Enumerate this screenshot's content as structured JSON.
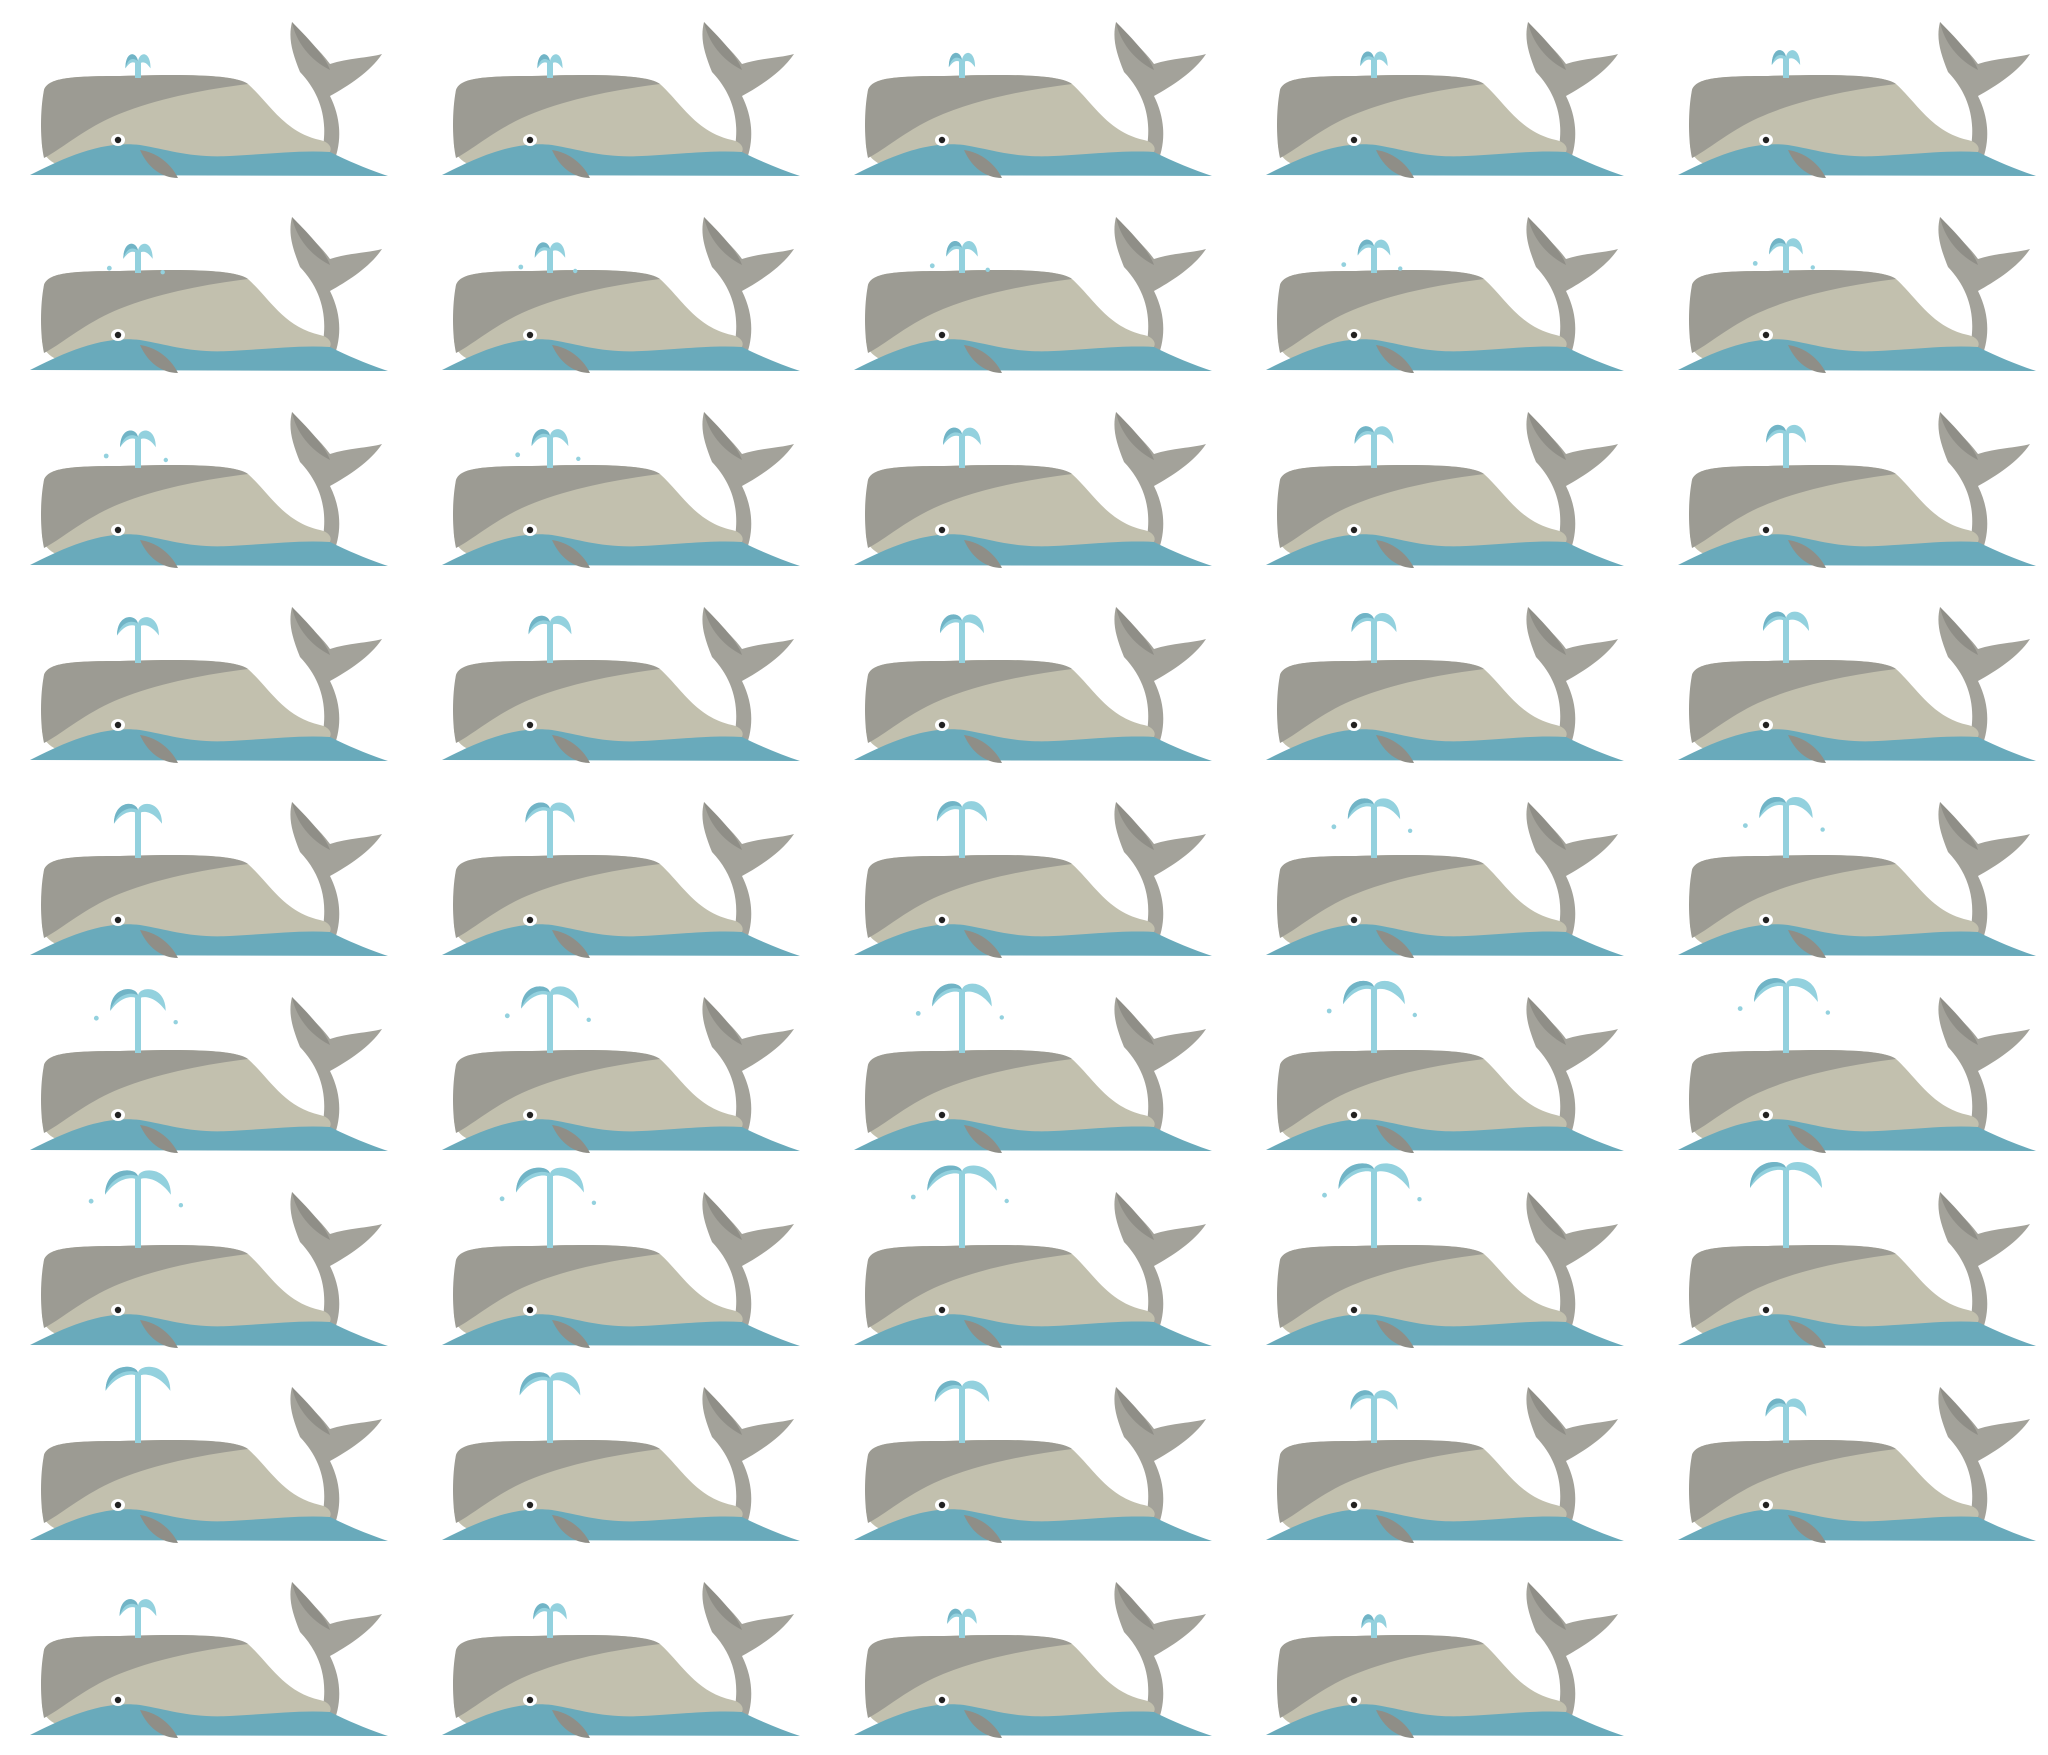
{
  "sprite_sheet": {
    "subject": "whale-spout-animation",
    "columns": 5,
    "rows": 9,
    "frame_count": 44,
    "colors": {
      "background": "#ffffff",
      "water": "#69aabb",
      "body_light": "#c2c0ae",
      "body_dark": "#9c9b93",
      "tail": "#a3a29a",
      "tail_dark": "#8f8e87",
      "spout": "#93d1de",
      "spout_dark": "#71b4c6",
      "eye": "#222222"
    },
    "frames": [
      {
        "spout_level": 0.1,
        "drops": false
      },
      {
        "spout_level": 0.1,
        "drops": false
      },
      {
        "spout_level": 0.12,
        "drops": false
      },
      {
        "spout_level": 0.14,
        "drops": false
      },
      {
        "spout_level": 0.16,
        "drops": false
      },
      {
        "spout_level": 0.18,
        "drops": true
      },
      {
        "spout_level": 0.2,
        "drops": true
      },
      {
        "spout_level": 0.22,
        "drops": true
      },
      {
        "spout_level": 0.24,
        "drops": true
      },
      {
        "spout_level": 0.26,
        "drops": true
      },
      {
        "spout_level": 0.3,
        "drops": true
      },
      {
        "spout_level": 0.32,
        "drops": true
      },
      {
        "spout_level": 0.34,
        "drops": false
      },
      {
        "spout_level": 0.36,
        "drops": false
      },
      {
        "spout_level": 0.38,
        "drops": false
      },
      {
        "spout_level": 0.42,
        "drops": false
      },
      {
        "spout_level": 0.44,
        "drops": false
      },
      {
        "spout_level": 0.46,
        "drops": false
      },
      {
        "spout_level": 0.48,
        "drops": false
      },
      {
        "spout_level": 0.5,
        "drops": false
      },
      {
        "spout_level": 0.54,
        "drops": false
      },
      {
        "spout_level": 0.56,
        "drops": false
      },
      {
        "spout_level": 0.58,
        "drops": false
      },
      {
        "spout_level": 0.62,
        "drops": true
      },
      {
        "spout_level": 0.64,
        "drops": true
      },
      {
        "spout_level": 0.68,
        "drops": true
      },
      {
        "spout_level": 0.72,
        "drops": true
      },
      {
        "spout_level": 0.76,
        "drops": true
      },
      {
        "spout_level": 0.8,
        "drops": true
      },
      {
        "spout_level": 0.84,
        "drops": true
      },
      {
        "spout_level": 0.88,
        "drops": true
      },
      {
        "spout_level": 0.92,
        "drops": true
      },
      {
        "spout_level": 0.95,
        "drops": true
      },
      {
        "spout_level": 0.98,
        "drops": true
      },
      {
        "spout_level": 1.0,
        "drops": false
      },
      {
        "spout_level": 0.86,
        "drops": false
      },
      {
        "spout_level": 0.78,
        "drops": false
      },
      {
        "spout_level": 0.66,
        "drops": false
      },
      {
        "spout_level": 0.52,
        "drops": false
      },
      {
        "spout_level": 0.4,
        "drops": false
      },
      {
        "spout_level": 0.32,
        "drops": false
      },
      {
        "spout_level": 0.26,
        "drops": false
      },
      {
        "spout_level": 0.18,
        "drops": false
      },
      {
        "spout_level": 0.1,
        "drops": false
      }
    ]
  }
}
